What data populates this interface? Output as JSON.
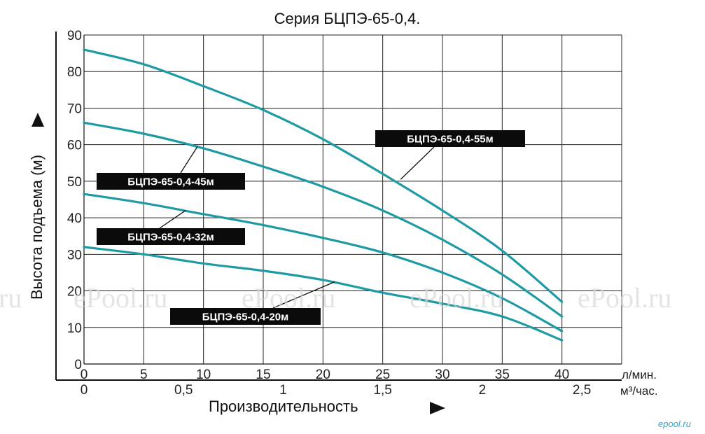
{
  "chart_data": {
    "type": "line",
    "title": "Серия БЦПЭ-65-0,4.",
    "ylabel": "Высота подъема (м)",
    "xlabel": "Производительность",
    "x_unit_primary": "л/мин.",
    "x_unit_secondary": "м³/час.",
    "xlim": [
      0,
      45
    ],
    "ylim": [
      0,
      90
    ],
    "x_ticks": [
      0,
      5,
      10,
      15,
      20,
      25,
      30,
      35,
      40
    ],
    "x_ticks_secondary": [
      {
        "value": 0,
        "label": "0"
      },
      {
        "value": 0.5,
        "label": "0,5"
      },
      {
        "value": 1,
        "label": "1"
      },
      {
        "value": 1.5,
        "label": "1,5"
      },
      {
        "value": 2,
        "label": "2"
      },
      {
        "value": 2.5,
        "label": "2,5"
      }
    ],
    "y_ticks": [
      0,
      10,
      20,
      30,
      40,
      50,
      60,
      70,
      80,
      90
    ],
    "grid": true,
    "line_color": "#1e9aa4",
    "series": [
      {
        "name": "БЦПЭ-65-0,4-55м",
        "x": [
          0,
          5,
          10,
          15,
          20,
          25,
          30,
          35,
          40
        ],
        "y": [
          86,
          82,
          76,
          69.5,
          61.5,
          52,
          42,
          31,
          17
        ]
      },
      {
        "name": "БЦПЭ-65-0,4-45м",
        "x": [
          0,
          5,
          10,
          15,
          20,
          25,
          30,
          35,
          40
        ],
        "y": [
          66,
          63,
          59,
          54,
          48.5,
          42,
          34,
          24.5,
          13
        ]
      },
      {
        "name": "БЦПЭ-65-0,4-32м",
        "x": [
          0,
          5,
          10,
          15,
          20,
          25,
          30,
          35,
          40
        ],
        "y": [
          46.5,
          44,
          41,
          38,
          34.5,
          30.5,
          25,
          18,
          9
        ]
      },
      {
        "name": "БЦПЭ-65-0,4-20м",
        "x": [
          0,
          5,
          10,
          15,
          20,
          25,
          30,
          35,
          40
        ],
        "y": [
          32,
          30,
          27.5,
          25.5,
          23,
          19.5,
          16.5,
          13,
          6.5
        ]
      }
    ],
    "annotations": [
      {
        "series": "БЦПЭ-65-0,4-55м",
        "text": "БЦПЭ-65-0,4-55м",
        "point": [
          26.5,
          50.5
        ]
      },
      {
        "series": "БЦПЭ-65-0,4-45м",
        "text": "БЦПЭ-65-0,4-45м",
        "point": [
          9.5,
          59.5
        ]
      },
      {
        "series": "БЦПЭ-65-0,4-32м",
        "text": "БЦПЭ-65-0,4-32м",
        "point": [
          8.5,
          42.0
        ]
      },
      {
        "series": "БЦПЭ-65-0,4-20м",
        "text": "БЦПЭ-65-0,4-20м",
        "point": [
          21.0,
          22.5
        ]
      }
    ]
  },
  "watermark": {
    "text_left": "ru",
    "text": "ePool.ru"
  },
  "site_mark": "epool.ru"
}
